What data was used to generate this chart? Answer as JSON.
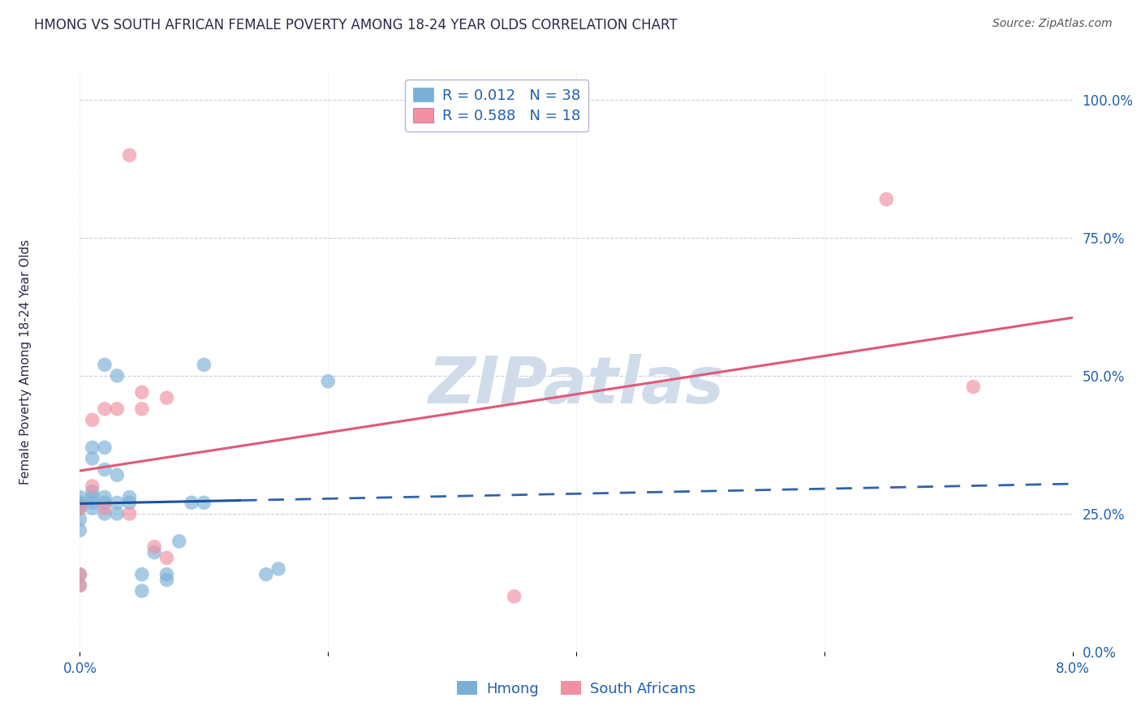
{
  "title": "HMONG VS SOUTH AFRICAN FEMALE POVERTY AMONG 18-24 YEAR OLDS CORRELATION CHART",
  "source": "Source: ZipAtlas.com",
  "ylabel": "Female Poverty Among 18-24 Year Olds",
  "xmin": 0.0,
  "xmax": 0.08,
  "ymin": 0.0,
  "ymax": 1.05,
  "yticks": [
    0.0,
    0.25,
    0.5,
    0.75,
    1.0
  ],
  "xticks": [
    0.0,
    0.02,
    0.04,
    0.06,
    0.08
  ],
  "hmong_color": "#7ab0d8",
  "sa_color": "#f090a0",
  "hmong_line_color": "#1a52a0",
  "sa_line_color": "#e05878",
  "legend_r1": "R = 0.012",
  "legend_n1": "N = 38",
  "legend_r2": "R = 0.588",
  "legend_n2": "N = 18",
  "legend_color1": "#7ab0d8",
  "legend_color2": "#f090a0",
  "hmong_x": [
    0.0,
    0.0,
    0.0,
    0.0,
    0.0,
    0.0,
    0.0,
    0.0,
    0.001,
    0.001,
    0.001,
    0.001,
    0.001,
    0.001,
    0.002,
    0.002,
    0.002,
    0.002,
    0.002,
    0.002,
    0.003,
    0.003,
    0.003,
    0.003,
    0.004,
    0.004,
    0.005,
    0.005,
    0.006,
    0.007,
    0.007,
    0.008,
    0.009,
    0.01,
    0.01,
    0.015,
    0.016,
    0.02
  ],
  "hmong_y": [
    0.12,
    0.14,
    0.22,
    0.24,
    0.26,
    0.265,
    0.27,
    0.28,
    0.26,
    0.27,
    0.28,
    0.29,
    0.35,
    0.37,
    0.25,
    0.27,
    0.28,
    0.33,
    0.37,
    0.52,
    0.25,
    0.27,
    0.32,
    0.5,
    0.27,
    0.28,
    0.11,
    0.14,
    0.18,
    0.13,
    0.14,
    0.2,
    0.27,
    0.27,
    0.52,
    0.14,
    0.15,
    0.49
  ],
  "sa_x": [
    0.0,
    0.0,
    0.0,
    0.001,
    0.001,
    0.002,
    0.002,
    0.003,
    0.004,
    0.004,
    0.005,
    0.005,
    0.006,
    0.007,
    0.007,
    0.035,
    0.065,
    0.072
  ],
  "sa_y": [
    0.12,
    0.14,
    0.26,
    0.3,
    0.42,
    0.26,
    0.44,
    0.44,
    0.25,
    0.9,
    0.44,
    0.47,
    0.19,
    0.17,
    0.46,
    0.1,
    0.82,
    0.48
  ],
  "background_color": "#ffffff",
  "grid_color": "#ccccdd",
  "title_color": "#2a2a4a",
  "axis_label_color": "#2060b0",
  "watermark_color": "#d0dcea",
  "source_color": "#555555"
}
